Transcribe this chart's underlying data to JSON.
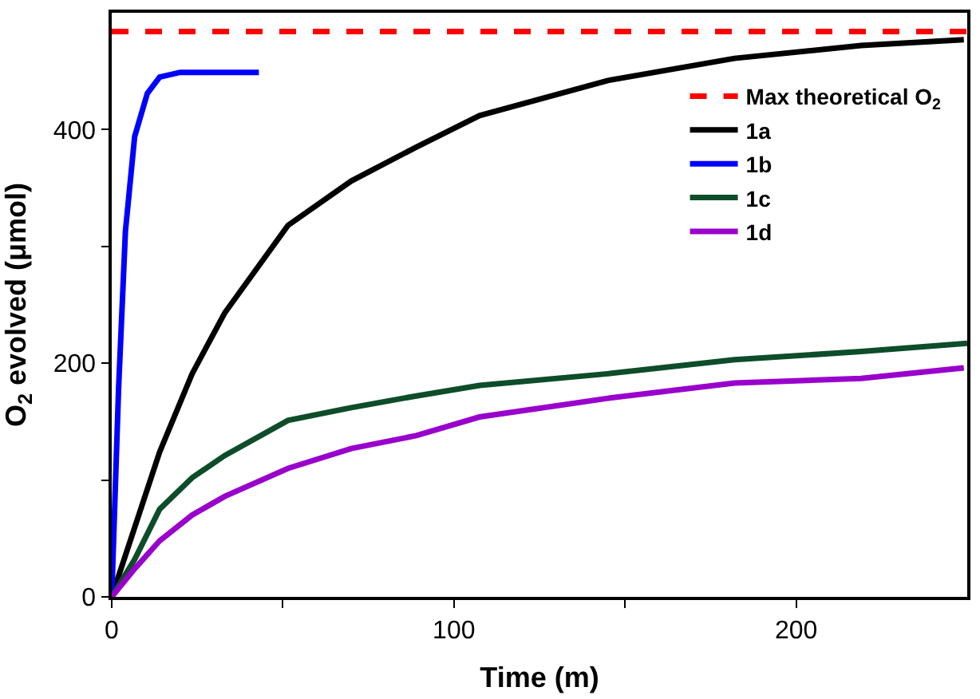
{
  "chart_data": {
    "type": "line",
    "xlabel": "Time (m)",
    "ylabel": "O$_{2}$ evolved (μmol)",
    "xlim": [
      0,
      250
    ],
    "ylim": [
      0,
      500
    ],
    "xticks": [
      0,
      {
        "value": 50,
        "label": null
      },
      100,
      {
        "value": 150,
        "label": null
      },
      200
    ],
    "yticks": [
      0,
      {
        "value": 100,
        "label": null
      },
      200,
      {
        "value": 300,
        "label": null
      },
      400
    ],
    "legend": "top right",
    "marker": "none",
    "series": [
      {
        "name": "Max theoretical O$_{2}$",
        "color": "#ff0000",
        "line_style": "dashed",
        "x": [
          0,
          250
        ],
        "values": [
          484,
          484
        ]
      },
      {
        "name": "1a",
        "color": "#000000",
        "x": [
          0,
          14,
          23.5,
          33,
          51.5,
          70,
          89,
          107.5,
          145,
          182,
          219,
          249
        ],
        "values": [
          0,
          124,
          191,
          243,
          318,
          356,
          385,
          412,
          442,
          461,
          472,
          477
        ]
      },
      {
        "name": "1b",
        "color": "#0000ff",
        "x": [
          0,
          2,
          4,
          6.7,
          10.4,
          14,
          20,
          43
        ],
        "values": [
          0,
          178,
          313,
          394,
          431,
          445,
          449,
          449
        ]
      },
      {
        "name": "1c",
        "color": "#0d4d2a",
        "x": [
          0,
          6.7,
          14,
          23.5,
          33,
          51.5,
          70,
          89,
          107.5,
          145,
          182,
          219,
          250
        ],
        "values": [
          0,
          32,
          75,
          102,
          121,
          151,
          162,
          172,
          181,
          191,
          203,
          210,
          217
        ]
      },
      {
        "name": "1d",
        "color": "#9900cc",
        "x": [
          0,
          6.7,
          14,
          23.5,
          33,
          51.5,
          70,
          89,
          107.5,
          145,
          182,
          219,
          249
        ],
        "values": [
          0,
          24,
          48,
          70,
          86,
          110,
          127,
          138,
          154,
          170,
          183,
          187,
          196
        ]
      }
    ]
  }
}
